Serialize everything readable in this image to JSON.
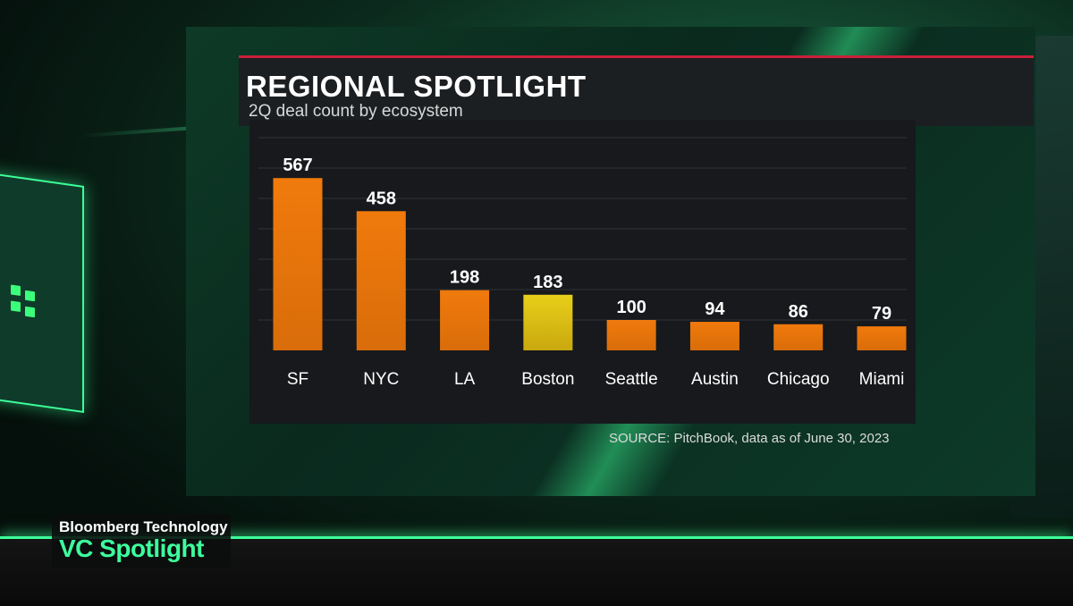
{
  "chart": {
    "title": "REGIONAL SPOTLIGHT",
    "subtitle": "2Q deal count by ecosystem",
    "source": "SOURCE: PitchBook, data as of June 30, 2023"
  },
  "branding": {
    "line1": "Bloomberg Technology",
    "line2": "VC Spotlight"
  },
  "colors": {
    "bar_default": "#e8760c",
    "bar_highlight": "#e6c514",
    "brand_green": "#3cff9e",
    "title_rule": "#c8203a"
  },
  "chart_data": {
    "type": "bar",
    "title": "REGIONAL SPOTLIGHT",
    "subtitle": "2Q deal count by ecosystem",
    "categories": [
      "SF",
      "NYC",
      "LA",
      "Boston",
      "Seattle",
      "Austin",
      "Chicago",
      "Miami"
    ],
    "values": [
      567,
      458,
      198,
      183,
      100,
      94,
      86,
      79
    ],
    "highlight": "Boston",
    "data_labels": true,
    "grid": true,
    "xlabel": "",
    "ylabel": "",
    "ylim": [
      0,
      700
    ]
  }
}
